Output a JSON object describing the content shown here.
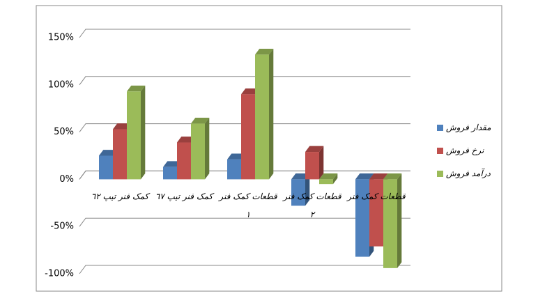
{
  "chart_data": {
    "type": "bar3d",
    "categories": [
      "کمک فنر تیپ ٦٢",
      "کمک فنر تیپ ٦٧",
      "قطعات کمک فنر ١",
      "قطعات کمک فنر ٢",
      "قطعات کمک فنر"
    ],
    "series": [
      {
        "name": "مقدار فروش",
        "color": "#4f81bd",
        "values": [
          25,
          13,
          21,
          -28,
          -82
        ]
      },
      {
        "name": "نرخ فروش",
        "color": "#c0504d",
        "values": [
          53,
          39,
          90,
          29,
          -71
        ]
      },
      {
        "name": "درآمد فروش",
        "color": "#9bbb59",
        "values": [
          93,
          59,
          132,
          -5,
          -94
        ]
      }
    ],
    "ylim": [
      -100,
      150
    ],
    "yticks": [
      {
        "value": -100,
        "label": "-100%"
      },
      {
        "value": -50,
        "label": "-50%"
      },
      {
        "value": 0,
        "label": "0%"
      },
      {
        "value": 50,
        "label": "50%"
      },
      {
        "value": 100,
        "label": "100%"
      },
      {
        "value": 150,
        "label": "150%"
      }
    ],
    "grid": true,
    "legend": "right"
  }
}
